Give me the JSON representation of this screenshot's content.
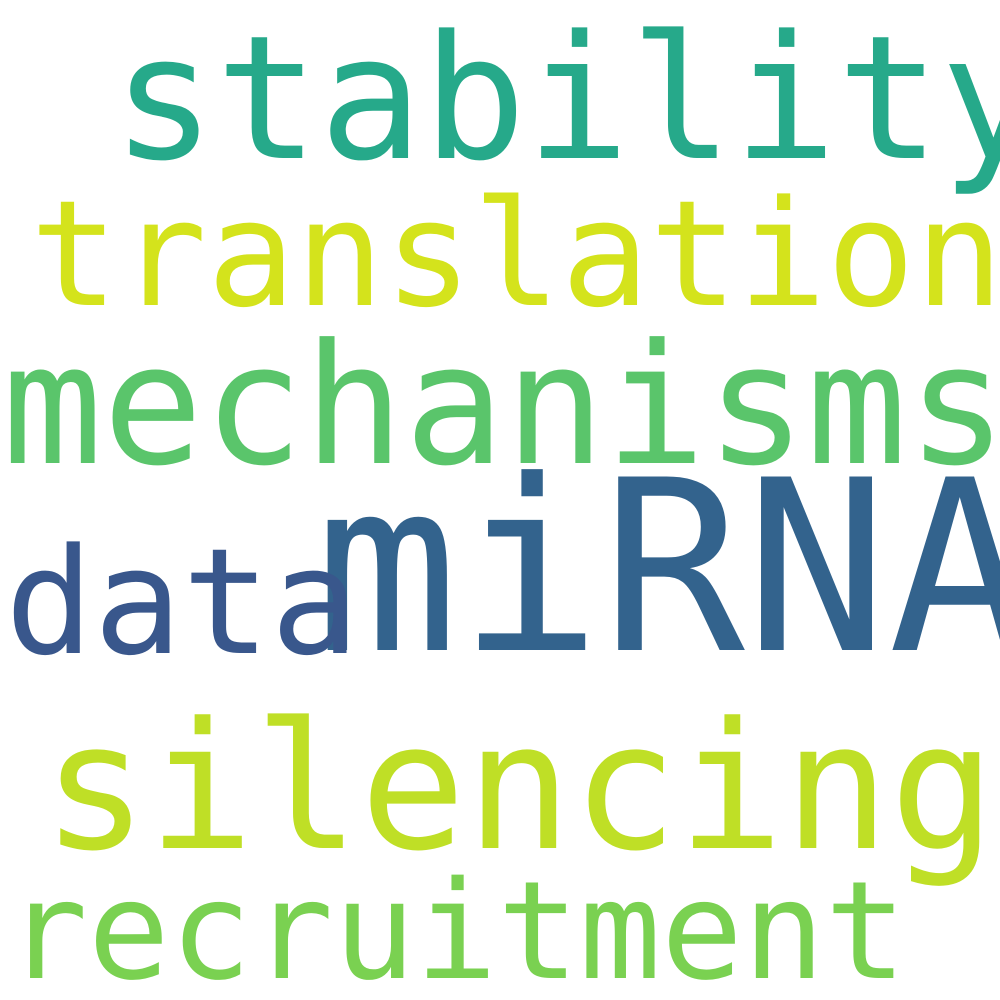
{
  "words": [
    {
      "key": "stability",
      "text": "stability",
      "color": "#26a98a"
    },
    {
      "key": "translation",
      "text": "translation",
      "color": "#d4e31c"
    },
    {
      "key": "mechanisms",
      "text": "mechanisms",
      "color": "#5ac56b"
    },
    {
      "key": "mirna",
      "text": "miRNA",
      "color": "#33638d"
    },
    {
      "key": "data",
      "text": "data",
      "color": "#39578c"
    },
    {
      "key": "silencing",
      "text": "silencing",
      "color": "#bfdf26"
    },
    {
      "key": "recruitment",
      "text": "recruitment",
      "color": "#7ad151"
    }
  ]
}
